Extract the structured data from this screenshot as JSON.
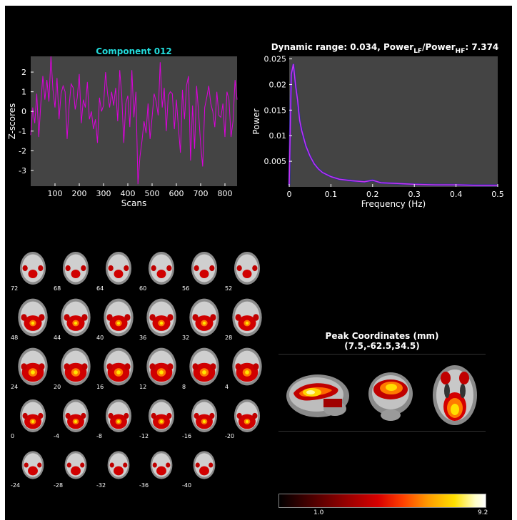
{
  "chart_data": [
    {
      "type": "line",
      "title": "Component 012",
      "xlabel": "Scans",
      "ylabel": "Z-scores",
      "xlim": [
        0,
        850
      ],
      "ylim": [
        -3.8,
        2.8
      ],
      "xticks": [
        100,
        200,
        300,
        400,
        500,
        600,
        700,
        800
      ],
      "yticks": [
        -3,
        -2,
        -1,
        0,
        1,
        2
      ],
      "series": [
        {
          "values": [
            -1.2,
            0.2,
            -0.6,
            0.9,
            -1.3,
            0.4,
            1.8,
            0.6,
            1.6,
            0.5,
            2.8,
            1.1,
            0.2,
            1.7,
            -0.4,
            0.9,
            1.3,
            1.0,
            -1.4,
            0.3,
            1.4,
            1.2,
            0.1,
            0.7,
            1.9,
            -0.6,
            0.6,
            0.2,
            1.5,
            -0.4,
            0.0,
            -0.9,
            -0.4,
            -1.6,
            0.7,
            0.0,
            0.3,
            2.0,
            0.9,
            0.2,
            1.0,
            0.3,
            1.2,
            -0.5,
            2.1,
            0.8,
            -1.6,
            0.4,
            0.8,
            -0.8,
            2.1,
            -0.3,
            1.0,
            -3.7,
            -2.3,
            -1.5,
            -0.5,
            -1.1,
            0.4,
            -1.4,
            -0.3,
            0.9,
            0.5,
            -0.2,
            2.5,
            0.2,
            1.2,
            -1.0,
            0.8,
            1.0,
            0.9,
            -0.9,
            0.6,
            -0.8,
            -2.1,
            1.1,
            -0.4,
            1.3,
            1.8,
            -2.5,
            0.3,
            -1.9,
            1.3,
            -0.1,
            -1.7,
            -2.8,
            0.2,
            0.7,
            1.3,
            0.4,
            0.0,
            -0.8,
            1.0,
            -0.2,
            -0.3,
            0.4,
            -1.3,
            1.0,
            0.6,
            -1.3,
            -0.5,
            1.6,
            0.6
          ],
          "color": "#dd00dd"
        }
      ]
    },
    {
      "type": "line",
      "title_parts": {
        "pre": "Dynamic range: 0.034, Power",
        "sub1": "LF",
        "mid": "/Power",
        "sub2": "HF",
        "post": ": 7.374"
      },
      "xlabel": "Frequency (Hz)",
      "ylabel": "Power",
      "xlim": [
        0,
        0.5
      ],
      "ylim": [
        0,
        0.0255
      ],
      "xticks": [
        0,
        0.1,
        0.2,
        0.3,
        0.4,
        0.5
      ],
      "yticks": [
        0.005,
        0.01,
        0.015,
        0.02,
        0.025
      ],
      "series": [
        {
          "x": [
            0.0,
            0.005,
            0.01,
            0.015,
            0.02,
            0.025,
            0.03,
            0.035,
            0.04,
            0.05,
            0.06,
            0.07,
            0.08,
            0.1,
            0.12,
            0.15,
            0.18,
            0.2,
            0.22,
            0.25,
            0.3,
            0.35,
            0.4,
            0.45,
            0.5
          ],
          "values": [
            0.0003,
            0.022,
            0.024,
            0.02,
            0.017,
            0.013,
            0.011,
            0.0095,
            0.008,
            0.006,
            0.0045,
            0.0035,
            0.0028,
            0.002,
            0.0015,
            0.0012,
            0.001,
            0.0013,
            0.0008,
            0.0007,
            0.0005,
            0.0004,
            0.0004,
            0.0003,
            0.0003
          ],
          "color": "#cc33ee"
        }
      ]
    }
  ],
  "slices": {
    "labels": [
      "72",
      "68",
      "64",
      "60",
      "56",
      "52",
      "48",
      "44",
      "40",
      "36",
      "32",
      "28",
      "24",
      "20",
      "16",
      "12",
      "8",
      "4",
      "0",
      "-4",
      "-8",
      "-12",
      "-16",
      "-20",
      "-24",
      "-28",
      "-32",
      "-36",
      "-40"
    ]
  },
  "peak": {
    "title": "Peak Coordinates (mm)",
    "coords": "(7.5,-62.5,34.5)"
  },
  "colorbar": {
    "min_label": "1.0",
    "max_label": "9.2"
  }
}
